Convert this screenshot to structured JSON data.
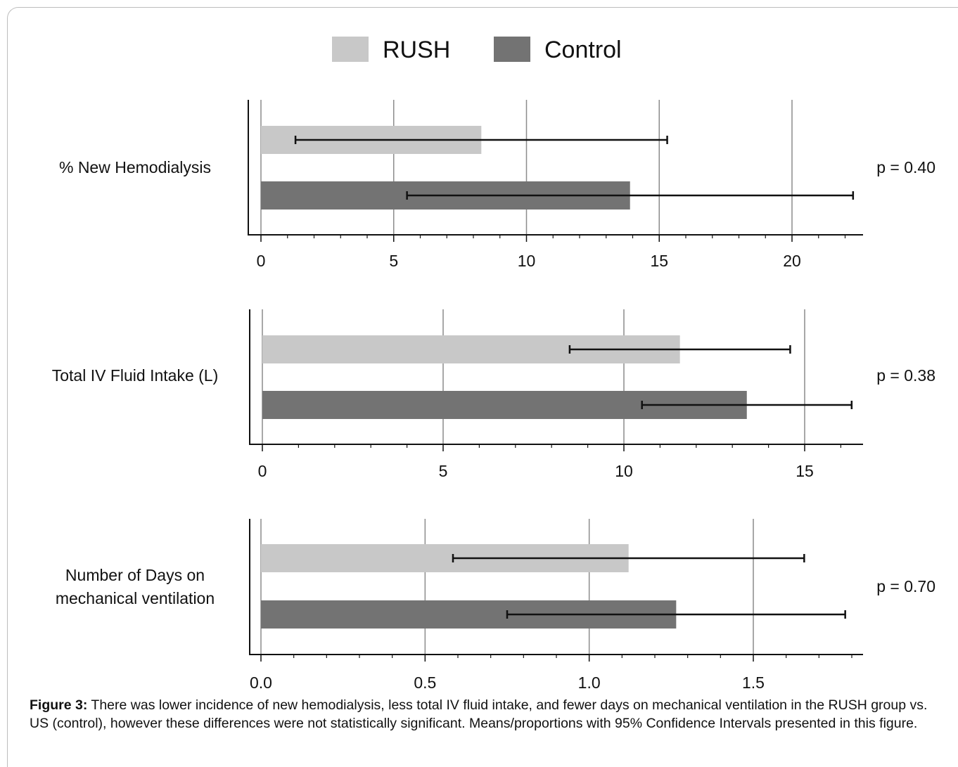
{
  "legend": {
    "rush_label": "RUSH",
    "control_label": "Control"
  },
  "colors": {
    "rush": "#c8c8c8",
    "control": "#737373",
    "grid": "#8c8c8c",
    "axis": "#111111",
    "errorbar": "#111111"
  },
  "chart_data": [
    {
      "type": "bar",
      "orientation": "horizontal",
      "category_label": "% New Hemodialysis",
      "p_value_label": "p = 0.40",
      "xlim": [
        0,
        22.5
      ],
      "ticks": [
        0,
        5,
        10,
        15,
        20
      ],
      "tick_labels": [
        "0",
        "5",
        "10",
        "15",
        "20"
      ],
      "minor_step": 1,
      "series": [
        {
          "name": "RUSH",
          "value": 8.3,
          "ci": [
            1.3,
            15.3
          ]
        },
        {
          "name": "Control",
          "value": 13.9,
          "ci": [
            5.5,
            22.3
          ]
        }
      ]
    },
    {
      "type": "bar",
      "orientation": "horizontal",
      "category_label": "Total IV Fluid Intake (L)",
      "p_value_label": "p = 0.38",
      "xlim": [
        0,
        16.6
      ],
      "ticks": [
        0,
        5,
        10,
        15
      ],
      "tick_labels": [
        "0",
        "5",
        "10",
        "15"
      ],
      "minor_step": 1,
      "series": [
        {
          "name": "RUSH",
          "value": 11.55,
          "ci": [
            8.5,
            14.6
          ]
        },
        {
          "name": "Control",
          "value": 13.4,
          "ci": [
            10.5,
            16.3
          ]
        }
      ]
    },
    {
      "type": "bar",
      "orientation": "horizontal",
      "category_label": "Number of Days on mechanical ventilation",
      "p_value_label": "p = 0.70",
      "xlim": [
        0,
        1.84
      ],
      "ticks": [
        0,
        0.5,
        1,
        1.5
      ],
      "tick_labels": [
        "0.0",
        "0.5",
        "1.0",
        "1.5"
      ],
      "minor_step": 0.1,
      "series": [
        {
          "name": "RUSH",
          "value": 1.12,
          "ci": [
            0.585,
            1.655
          ]
        },
        {
          "name": "Control",
          "value": 1.265,
          "ci": [
            0.75,
            1.78
          ]
        }
      ]
    }
  ],
  "caption": {
    "label": "Figure 3:",
    "text": " There was lower incidence of new hemodialysis, less total IV fluid intake, and fewer days on mechanical ventilation in the RUSH group vs. US (control), however these differences were not statistically significant. Means/proportions with 95% Confidence Intervals presented in this figure."
  }
}
